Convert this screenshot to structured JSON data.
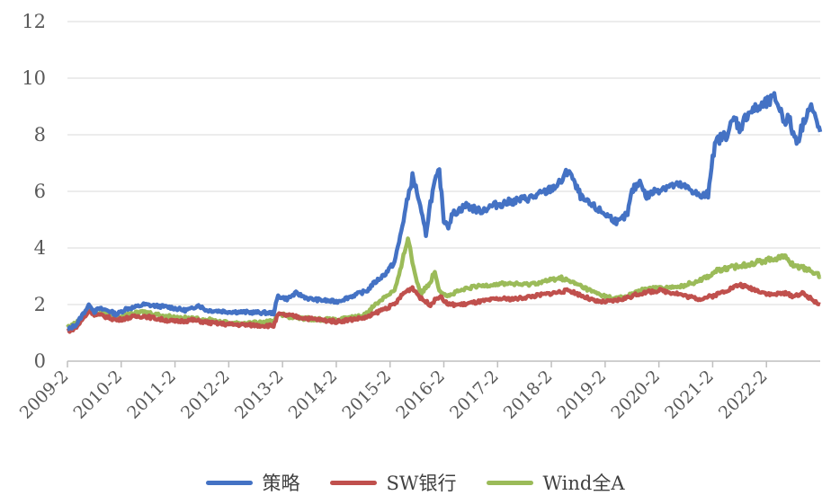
{
  "chart_data": {
    "type": "line",
    "title": "",
    "xlabel": "",
    "ylabel": "",
    "ylim": [
      0,
      12
    ],
    "yticks": [
      "0",
      "2",
      "4",
      "6",
      "8",
      "10",
      "12"
    ],
    "xticks": [
      "2009-2",
      "2010-2",
      "2011-2",
      "2012-2",
      "2013-2",
      "2014-2",
      "2015-2",
      "2016-2",
      "2017-2",
      "2018-2",
      "2019-2",
      "2020-2",
      "2021-2",
      "2022-2"
    ],
    "grid": true,
    "legend_position": "bottom",
    "series": [
      {
        "name": "策略",
        "color": "#4472C4",
        "points": [
          [
            0,
            1.1
          ],
          [
            2,
            1.3
          ],
          [
            4,
            1.8
          ],
          [
            5,
            2.0
          ],
          [
            6,
            1.75
          ],
          [
            7,
            1.85
          ],
          [
            9,
            1.8
          ],
          [
            11,
            1.65
          ],
          [
            13,
            1.85
          ],
          [
            15,
            1.9
          ],
          [
            17,
            2.0
          ],
          [
            20,
            1.95
          ],
          [
            23,
            1.9
          ],
          [
            26,
            1.8
          ],
          [
            28,
            1.85
          ],
          [
            29,
            2.0
          ],
          [
            31,
            1.8
          ],
          [
            36,
            1.75
          ],
          [
            46,
            1.7
          ],
          [
            47,
            2.3
          ],
          [
            49,
            2.2
          ],
          [
            51,
            2.4
          ],
          [
            54,
            2.2
          ],
          [
            60,
            2.1
          ],
          [
            67,
            2.5
          ],
          [
            68,
            2.7
          ],
          [
            71,
            3.1
          ],
          [
            73,
            3.5
          ],
          [
            74,
            4.2
          ],
          [
            75,
            5.0
          ],
          [
            76,
            5.8
          ],
          [
            77,
            6.5
          ],
          [
            78,
            6.0
          ],
          [
            79,
            5.2
          ],
          [
            80,
            4.5
          ],
          [
            81,
            5.6
          ],
          [
            82,
            6.3
          ],
          [
            83,
            6.7
          ],
          [
            84,
            5.0
          ],
          [
            85,
            4.8
          ],
          [
            86,
            5.2
          ],
          [
            89,
            5.5
          ],
          [
            92,
            5.3
          ],
          [
            95,
            5.5
          ],
          [
            98,
            5.6
          ],
          [
            101,
            5.7
          ],
          [
            104,
            5.8
          ],
          [
            107,
            6.0
          ],
          [
            110,
            6.3
          ],
          [
            112,
            6.8
          ],
          [
            113,
            6.3
          ],
          [
            115,
            5.7
          ],
          [
            118,
            5.4
          ],
          [
            121,
            5.1
          ],
          [
            123,
            4.9
          ],
          [
            125,
            5.2
          ],
          [
            126,
            6.0
          ],
          [
            128,
            6.4
          ],
          [
            129,
            5.8
          ],
          [
            131,
            6.0
          ],
          [
            134,
            6.2
          ],
          [
            137,
            6.2
          ],
          [
            140,
            6.0
          ],
          [
            141,
            5.8
          ],
          [
            143,
            5.9
          ],
          [
            144,
            7.3
          ],
          [
            145,
            7.8
          ],
          [
            147,
            8.0
          ],
          [
            149,
            8.6
          ],
          [
            150,
            8.2
          ],
          [
            152,
            8.8
          ],
          [
            155,
            9.0
          ],
          [
            158,
            9.3
          ],
          [
            159,
            8.9
          ],
          [
            160,
            8.5
          ],
          [
            161,
            8.6
          ],
          [
            162,
            8.0
          ],
          [
            163,
            7.8
          ],
          [
            164,
            8.3
          ],
          [
            165,
            8.8
          ],
          [
            166,
            9.0
          ],
          [
            167,
            8.5
          ],
          [
            168,
            8.1
          ]
        ]
      },
      {
        "name": "SW银行",
        "color": "#C0504D",
        "points": [
          [
            0,
            1.05
          ],
          [
            2,
            1.2
          ],
          [
            4,
            1.6
          ],
          [
            5,
            1.8
          ],
          [
            6,
            1.65
          ],
          [
            8,
            1.6
          ],
          [
            11,
            1.45
          ],
          [
            14,
            1.55
          ],
          [
            17,
            1.6
          ],
          [
            20,
            1.5
          ],
          [
            24,
            1.4
          ],
          [
            28,
            1.45
          ],
          [
            32,
            1.35
          ],
          [
            36,
            1.3
          ],
          [
            46,
            1.25
          ],
          [
            47,
            1.65
          ],
          [
            50,
            1.6
          ],
          [
            54,
            1.5
          ],
          [
            60,
            1.4
          ],
          [
            67,
            1.55
          ],
          [
            70,
            1.8
          ],
          [
            73,
            2.0
          ],
          [
            75,
            2.4
          ],
          [
            77,
            2.6
          ],
          [
            79,
            2.2
          ],
          [
            81,
            2.0
          ],
          [
            83,
            2.3
          ],
          [
            85,
            2.0
          ],
          [
            88,
            2.0
          ],
          [
            92,
            2.1
          ],
          [
            96,
            2.2
          ],
          [
            100,
            2.2
          ],
          [
            104,
            2.3
          ],
          [
            108,
            2.4
          ],
          [
            112,
            2.5
          ],
          [
            115,
            2.3
          ],
          [
            118,
            2.1
          ],
          [
            121,
            2.1
          ],
          [
            124,
            2.2
          ],
          [
            128,
            2.4
          ],
          [
            132,
            2.5
          ],
          [
            136,
            2.4
          ],
          [
            138,
            2.3
          ],
          [
            141,
            2.2
          ],
          [
            144,
            2.3
          ],
          [
            147,
            2.5
          ],
          [
            150,
            2.7
          ],
          [
            152,
            2.6
          ],
          [
            154,
            2.5
          ],
          [
            157,
            2.35
          ],
          [
            160,
            2.4
          ],
          [
            162,
            2.3
          ],
          [
            164,
            2.4
          ],
          [
            166,
            2.2
          ],
          [
            168,
            2.0
          ]
        ]
      },
      {
        "name": "Wind全A",
        "color": "#9BBB59",
        "points": [
          [
            0,
            1.2
          ],
          [
            2,
            1.35
          ],
          [
            4,
            1.7
          ],
          [
            5,
            1.85
          ],
          [
            6,
            1.65
          ],
          [
            8,
            1.7
          ],
          [
            11,
            1.55
          ],
          [
            14,
            1.65
          ],
          [
            17,
            1.75
          ],
          [
            20,
            1.65
          ],
          [
            24,
            1.55
          ],
          [
            28,
            1.5
          ],
          [
            32,
            1.45
          ],
          [
            36,
            1.35
          ],
          [
            42,
            1.35
          ],
          [
            46,
            1.4
          ],
          [
            47,
            1.7
          ],
          [
            50,
            1.55
          ],
          [
            54,
            1.5
          ],
          [
            60,
            1.45
          ],
          [
            66,
            1.6
          ],
          [
            68,
            1.9
          ],
          [
            71,
            2.3
          ],
          [
            73,
            2.5
          ],
          [
            74,
            3.0
          ],
          [
            75,
            3.7
          ],
          [
            76,
            4.4
          ],
          [
            77,
            3.5
          ],
          [
            78,
            2.8
          ],
          [
            79,
            2.4
          ],
          [
            81,
            2.8
          ],
          [
            82,
            3.2
          ],
          [
            83,
            2.5
          ],
          [
            85,
            2.3
          ],
          [
            87,
            2.45
          ],
          [
            90,
            2.6
          ],
          [
            94,
            2.7
          ],
          [
            98,
            2.75
          ],
          [
            102,
            2.7
          ],
          [
            106,
            2.8
          ],
          [
            110,
            2.95
          ],
          [
            114,
            2.7
          ],
          [
            118,
            2.4
          ],
          [
            122,
            2.2
          ],
          [
            125,
            2.3
          ],
          [
            128,
            2.5
          ],
          [
            132,
            2.6
          ],
          [
            136,
            2.6
          ],
          [
            140,
            2.8
          ],
          [
            143,
            3.0
          ],
          [
            145,
            3.2
          ],
          [
            148,
            3.3
          ],
          [
            151,
            3.4
          ],
          [
            154,
            3.5
          ],
          [
            157,
            3.6
          ],
          [
            160,
            3.7
          ],
          [
            162,
            3.4
          ],
          [
            164,
            3.3
          ],
          [
            166,
            3.2
          ],
          [
            168,
            3.0
          ]
        ]
      }
    ]
  }
}
